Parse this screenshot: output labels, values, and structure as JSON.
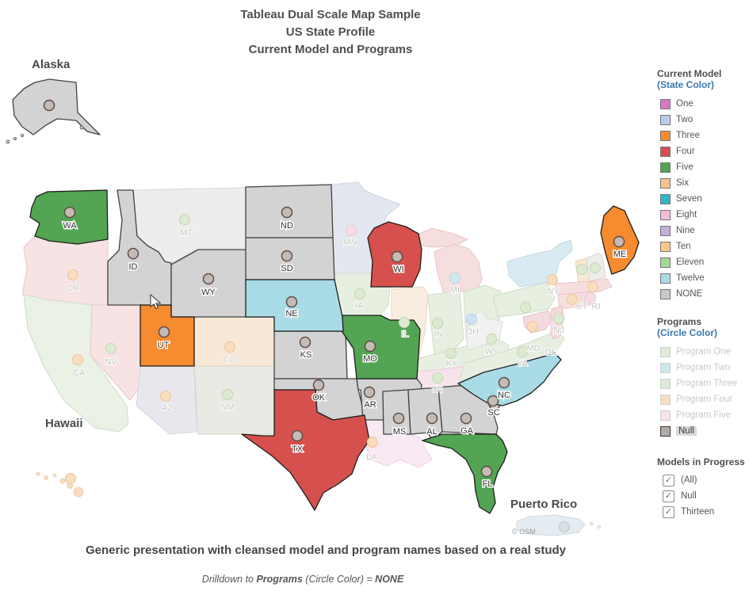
{
  "title": {
    "line1": "Tableau Dual Scale Map Sample",
    "line2": "US State Profile",
    "line3": "Current Model and Programs"
  },
  "footer": {
    "caption": "Generic presentation with cleansed model and program names based on a real study",
    "drilldown_prefix": "Drilldown to ",
    "drilldown_bold1": "Programs",
    "drilldown_mid": " (Circle Color) = ",
    "drilldown_bold2": "NONE"
  },
  "map": {
    "attribution": "© OSM",
    "region_labels": [
      {
        "id": "alaska",
        "text": "Alaska"
      },
      {
        "id": "hawaii",
        "text": "Hawaii"
      },
      {
        "id": "puerto-rico",
        "text": "Puerto Rico"
      }
    ],
    "states": [
      {
        "id": "OR",
        "label": "OR",
        "active": false,
        "fill": "#f7e3e3",
        "border": "#e5caca",
        "circle_fill": "#f8ddbe",
        "circle_stroke": "#eec9a2"
      },
      {
        "id": "CA",
        "label": "CA",
        "active": false,
        "fill": "#eaf1e5",
        "border": "#cfdcc8",
        "circle_fill": "#f8ddbe",
        "circle_stroke": "#eec9a2"
      },
      {
        "id": "NV",
        "label": "NV",
        "active": false,
        "fill": "#f7e3e3",
        "border": "#e5caca",
        "circle_fill": "#dcead2",
        "circle_stroke": "#c6dab8"
      },
      {
        "id": "MT",
        "label": "MT",
        "active": false,
        "fill": "#eeedeb",
        "border": "#d9d6d1",
        "circle_fill": "#dcead2",
        "circle_stroke": "#c6dab8"
      },
      {
        "id": "MN",
        "label": "MN",
        "active": false,
        "fill": "#e2e7f0",
        "border": "#ccd4e4",
        "circle_fill": "#f7dce4",
        "circle_stroke": "#edc7d4"
      },
      {
        "id": "IA",
        "label": "IA",
        "active": false,
        "fill": "#e7efe1",
        "border": "#cfddc5",
        "circle_fill": "#dcead2",
        "circle_stroke": "#c6dab8"
      },
      {
        "id": "IL",
        "label": "IL",
        "active": false,
        "fill": "#f9ece1",
        "border": "#ecd5bd",
        "circle_fill": "#dcead2",
        "circle_stroke": "#c6dab8"
      },
      {
        "id": "MI",
        "label": "MI",
        "active": false,
        "fill": "#f6dede",
        "border": "#e8c6c6",
        "circle_fill": "#cfe9ee",
        "circle_stroke": "#b5dce4"
      },
      {
        "id": "IN",
        "label": "IN",
        "active": false,
        "fill": "#e7efe1",
        "border": "#cfddc5",
        "circle_fill": "#dcead2",
        "circle_stroke": "#c6dab8"
      },
      {
        "id": "OH",
        "label": "OH",
        "active": false,
        "fill": "#e7efe1",
        "border": "#cfddc5",
        "circle_fill": "#cfe2f1",
        "circle_stroke": "#b8d2e8"
      },
      {
        "id": "KY",
        "label": "KY",
        "active": false,
        "fill": "#e7efe1",
        "border": "#cfddc5",
        "circle_fill": "#dcead2",
        "circle_stroke": "#c6dab8"
      },
      {
        "id": "TN",
        "label": "TN",
        "active": false,
        "fill": "#f7e3ec",
        "border": "#e9cbd9",
        "circle_fill": "#dcead2",
        "circle_stroke": "#c6dab8"
      },
      {
        "id": "LA",
        "label": "LA",
        "active": false,
        "fill": "#f9e9f3",
        "border": "#ecd2e2",
        "circle_fill": "#f8ddbe",
        "circle_stroke": "#eec9a2"
      },
      {
        "id": "VA",
        "label": "VA",
        "active": false,
        "fill": "#e7efe1",
        "border": "#cfddc5",
        "circle_fill": "#dcead2",
        "circle_stroke": "#c6dab8"
      },
      {
        "id": "WV",
        "label": "WV",
        "active": false,
        "fill": "#f1f1ef",
        "border": "#dcdcd8",
        "circle_fill": "#dcead2",
        "circle_stroke": "#c6dab8"
      },
      {
        "id": "PA",
        "label": "",
        "active": false,
        "fill": "#e7efe1",
        "border": "#cfddc5",
        "circle_fill": "#dcead2",
        "circle_stroke": "#c6dab8"
      },
      {
        "id": "NY",
        "label": "NY",
        "active": false,
        "fill": "#d9eaf2",
        "border": "#c0d8e6",
        "circle_fill": "#f8ddbe",
        "circle_stroke": "#eec9a2"
      },
      {
        "id": "VT",
        "label": "",
        "active": false,
        "fill": "#f8e8d4",
        "border": "#ead2b4",
        "circle_fill": "#dcead2",
        "circle_stroke": "#c6dab8"
      },
      {
        "id": "NH",
        "label": "",
        "active": false,
        "fill": "#eeedeb",
        "border": "#d9d6d1",
        "circle_fill": "#dcead2",
        "circle_stroke": "#c6dab8"
      },
      {
        "id": "MA",
        "label": "",
        "active": false,
        "fill": "#f6dede",
        "border": "#e8c6c6",
        "circle_fill": "#f8ddbe",
        "circle_stroke": "#eec9a2"
      },
      {
        "id": "CT",
        "label": "CT",
        "active": false,
        "fill": "#f7dede",
        "border": "#e8c6c6",
        "circle_fill": "#f8ddbe",
        "circle_stroke": "#eec9a2"
      },
      {
        "id": "RI",
        "label": "RI",
        "active": false,
        "fill": "#f7e0e0",
        "border": "#e8c6c6",
        "circle_fill": "#f7dce4",
        "circle_stroke": "#edc7d4"
      },
      {
        "id": "NJ",
        "label": "NJ",
        "active": false,
        "fill": "#f5dada",
        "border": "#e6c2c2",
        "circle_fill": "#dcead2",
        "circle_stroke": "#c6dab8"
      },
      {
        "id": "MD",
        "label": "MD",
        "active": false,
        "fill": "#f3dade",
        "border": "#e4c2c8",
        "circle_fill": "#f8ddbe",
        "circle_stroke": "#eec9a2"
      },
      {
        "id": "DE",
        "label": "DE",
        "active": false,
        "fill": "#f7dfe8",
        "border": "#e8c8d6",
        "circle_fill": "#f7dce4",
        "circle_stroke": "#edc7d4"
      },
      {
        "id": "CO",
        "label": "CO",
        "active": false,
        "fill": "#f8e8d8",
        "border": "#e9d2ba",
        "circle_fill": "#f8ddbe",
        "circle_stroke": "#eec9a2"
      },
      {
        "id": "AZ",
        "label": "AZ",
        "active": false,
        "fill": "#e9e7ee",
        "border": "#d5d3dc",
        "circle_fill": "#f8ddbe",
        "circle_stroke": "#eec9a2"
      },
      {
        "id": "NM",
        "label": "NM",
        "active": false,
        "fill": "#e8eae3",
        "border": "#d2d6ca",
        "circle_fill": "#dcead2",
        "circle_stroke": "#c6dab8"
      },
      {
        "id": "HI",
        "label": "",
        "active": false,
        "fill": "#f6ddc2",
        "border": "#e8c7a4",
        "circle_fill": "#f8ddbe",
        "circle_stroke": "#eec9a2"
      },
      {
        "id": "PR",
        "label": "",
        "active": false,
        "fill": "#e5edf2",
        "border": "#cbd9e1",
        "circle_fill": "#d8dfe3",
        "circle_stroke": "#bfc9cf"
      },
      {
        "id": "AK",
        "label": "",
        "active": true,
        "fill": "#d3d3d3",
        "border": "#424242",
        "circle_fill": "#c6bab4",
        "circle_stroke": "#5a4f48"
      },
      {
        "id": "ID",
        "label": "ID",
        "active": true,
        "fill": "#d3d3d3",
        "border": "#424242",
        "circle_fill": "#c6bab4",
        "circle_stroke": "#5a4f48"
      },
      {
        "id": "WY",
        "label": "WY",
        "active": true,
        "fill": "#d3d3d3",
        "border": "#424242",
        "circle_fill": "#c6bab4",
        "circle_stroke": "#5a4f48"
      },
      {
        "id": "ND",
        "label": "ND",
        "active": true,
        "fill": "#d3d3d3",
        "border": "#424242",
        "circle_fill": "#c6bab4",
        "circle_stroke": "#5a4f48"
      },
      {
        "id": "SD",
        "label": "SD",
        "active": true,
        "fill": "#d3d3d3",
        "border": "#424242",
        "circle_fill": "#c6bab4",
        "circle_stroke": "#5a4f48"
      },
      {
        "id": "KS",
        "label": "KS",
        "active": true,
        "fill": "#d3d3d3",
        "border": "#424242",
        "circle_fill": "#c6bab4",
        "circle_stroke": "#5a4f48"
      },
      {
        "id": "OK",
        "label": "OK",
        "active": true,
        "fill": "#d3d3d3",
        "border": "#424242",
        "circle_fill": "#c6bab4",
        "circle_stroke": "#5a4f48"
      },
      {
        "id": "AR",
        "label": "AR",
        "active": true,
        "fill": "#d3d3d3",
        "border": "#424242",
        "circle_fill": "#c6bab4",
        "circle_stroke": "#5a4f48"
      },
      {
        "id": "MS",
        "label": "MS",
        "active": true,
        "fill": "#d3d3d3",
        "border": "#424242",
        "circle_fill": "#c6bab4",
        "circle_stroke": "#5a4f48"
      },
      {
        "id": "AL",
        "label": "AL",
        "active": true,
        "fill": "#d3d3d3",
        "border": "#424242",
        "circle_fill": "#c6bab4",
        "circle_stroke": "#5a4f48"
      },
      {
        "id": "GA",
        "label": "GA",
        "active": true,
        "fill": "#d3d3d3",
        "border": "#424242",
        "circle_fill": "#c6bab4",
        "circle_stroke": "#5a4f48"
      },
      {
        "id": "SC",
        "label": "SC",
        "active": true,
        "fill": "#d3d3d3",
        "border": "#424242",
        "circle_fill": "#c6bab4",
        "circle_stroke": "#5a4f48"
      },
      {
        "id": "WA",
        "label": "WA",
        "active": true,
        "fill": "#53a453",
        "border": "#1d1d1d",
        "circle_fill": "#c6bab4",
        "circle_stroke": "#5a4f48"
      },
      {
        "id": "UT",
        "label": "UT",
        "active": true,
        "fill": "#f68b2f",
        "border": "#1d1d1d",
        "circle_fill": "#c6bab4",
        "circle_stroke": "#5a4f48"
      },
      {
        "id": "TX",
        "label": "TX",
        "active": true,
        "fill": "#d6504d",
        "border": "#1d1d1d",
        "circle_fill": "#c6bab4",
        "circle_stroke": "#5a4f48"
      },
      {
        "id": "MO",
        "label": "MO",
        "active": true,
        "fill": "#53a453",
        "border": "#1d1d1d",
        "circle_fill": "#c6bab4",
        "circle_stroke": "#5a4f48"
      },
      {
        "id": "WI",
        "label": "WI",
        "active": true,
        "fill": "#d6504d",
        "border": "#1d1d1d",
        "circle_fill": "#c6bab4",
        "circle_stroke": "#5a4f48"
      },
      {
        "id": "FL",
        "label": "FL",
        "active": true,
        "fill": "#53a453",
        "border": "#1d1d1d",
        "circle_fill": "#c6bab4",
        "circle_stroke": "#5a4f48"
      },
      {
        "id": "ME",
        "label": "ME",
        "active": true,
        "fill": "#f68b2f",
        "border": "#1d1d1d",
        "circle_fill": "#c6bab4",
        "circle_stroke": "#5a4f48"
      },
      {
        "id": "NE",
        "label": "NE",
        "active": true,
        "fill": "#a8dbe6",
        "border": "#1d1d1d",
        "circle_fill": "#c6bab4",
        "circle_stroke": "#5a4f48"
      },
      {
        "id": "NC",
        "label": "NC",
        "active": true,
        "fill": "#a8dbe6",
        "border": "#1d1d1d",
        "circle_fill": "#c6bab4",
        "circle_stroke": "#5a4f48"
      }
    ]
  },
  "legends": {
    "current_model": {
      "title": "Current Model",
      "subtitle": "(State Color)",
      "items": [
        {
          "label": "One",
          "color": "#d778c4"
        },
        {
          "label": "Two",
          "color": "#b9cce9"
        },
        {
          "label": "Three",
          "color": "#f68b2f"
        },
        {
          "label": "Four",
          "color": "#d6504d"
        },
        {
          "label": "Five",
          "color": "#53a453"
        },
        {
          "label": "Six",
          "color": "#fac38c"
        },
        {
          "label": "Seven",
          "color": "#2fb5c7"
        },
        {
          "label": "Eight",
          "color": "#f3bcd9"
        },
        {
          "label": "Nine",
          "color": "#c3aed6"
        },
        {
          "label": "Ten",
          "color": "#fbc88c"
        },
        {
          "label": "Eleven",
          "color": "#a4d995"
        },
        {
          "label": "Twelve",
          "color": "#a8dbe6"
        },
        {
          "label": "NONE",
          "color": "#c9c9c9"
        }
      ]
    },
    "programs": {
      "title": "Programs",
      "subtitle": "(Circle Color)",
      "items": [
        {
          "label": "Program One",
          "color": "#dfecd5",
          "muted": true,
          "selected": false
        },
        {
          "label": "Program Two",
          "color": "#cce8ea",
          "muted": true,
          "selected": false
        },
        {
          "label": "Program Three",
          "color": "#dcead6",
          "muted": true,
          "selected": false
        },
        {
          "label": "Program Four",
          "color": "#f6ddc2",
          "muted": true,
          "selected": false
        },
        {
          "label": "Program Five",
          "color": "#f9e3e7",
          "muted": true,
          "selected": false
        },
        {
          "label": "Null",
          "color": "#b4aaa5",
          "muted": false,
          "selected": true
        }
      ]
    },
    "models_in_progress": {
      "title": "Models in Progress",
      "items": [
        {
          "label": "(All)",
          "checked": true
        },
        {
          "label": "Null",
          "checked": true
        },
        {
          "label": "Thirteen",
          "checked": true
        }
      ]
    }
  }
}
